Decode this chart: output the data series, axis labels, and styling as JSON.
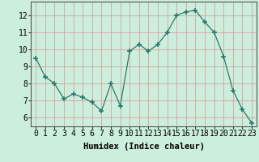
{
  "x": [
    0,
    1,
    2,
    3,
    4,
    5,
    6,
    7,
    8,
    9,
    10,
    11,
    12,
    13,
    14,
    15,
    16,
    17,
    18,
    19,
    20,
    21,
    22,
    23
  ],
  "y": [
    9.5,
    8.4,
    8.0,
    7.1,
    7.4,
    7.2,
    6.9,
    6.4,
    8.0,
    6.7,
    9.9,
    10.3,
    9.9,
    10.3,
    11.0,
    12.0,
    12.2,
    12.3,
    11.6,
    11.0,
    9.6,
    7.6,
    6.5,
    5.7
  ],
  "line_color": "#2a7a6a",
  "marker": "+",
  "marker_size": 4,
  "marker_lw": 1.2,
  "background_color": "#cceedd",
  "grid_color": "#d9a0a0",
  "xlabel": "Humidex (Indice chaleur)",
  "xlabel_fontsize": 7.5,
  "tick_fontsize": 7,
  "xlim": [
    -0.5,
    23.5
  ],
  "ylim": [
    5.5,
    12.8
  ],
  "yticks": [
    6,
    7,
    8,
    9,
    10,
    11,
    12
  ],
  "xticks": [
    0,
    1,
    2,
    3,
    4,
    5,
    6,
    7,
    8,
    9,
    10,
    11,
    12,
    13,
    14,
    15,
    16,
    17,
    18,
    19,
    20,
    21,
    22,
    23
  ]
}
